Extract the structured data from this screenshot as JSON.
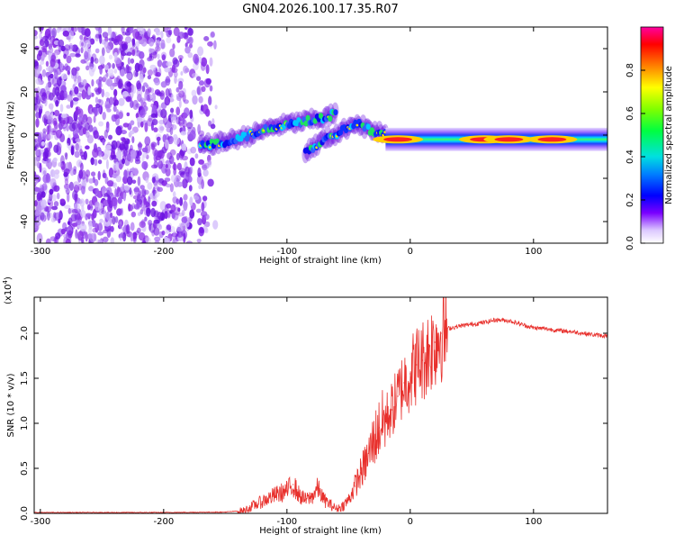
{
  "title": "GN04.2026.100.17.35.R07",
  "chart_data": [
    {
      "type": "heatmap",
      "xlabel": "Height of straight line (km)",
      "ylabel": "Frequency (Hz)",
      "xlim": [
        -305,
        160
      ],
      "ylim": [
        -50,
        50
      ],
      "xticks": [
        -300,
        -200,
        -100,
        0,
        100
      ],
      "xtick_labels": [
        "-300",
        "-200",
        "-100",
        "0",
        "100"
      ],
      "yticks": [
        -40,
        -20,
        0,
        20,
        40
      ],
      "ytick_labels": [
        "-40",
        "-20",
        "0",
        "20",
        "40"
      ],
      "colorbar": {
        "label": "Normalized spectral amplitude",
        "range": [
          0,
          1
        ],
        "ticks": [
          0.0,
          0.2,
          0.4,
          0.6,
          0.8
        ],
        "tick_labels": [
          "0.0",
          "0.2",
          "0.4",
          "0.6",
          "0.8"
        ]
      },
      "features": [
        {
          "name": "noise",
          "x_range": [
            -305,
            -155
          ],
          "y_range": [
            -50,
            50
          ],
          "amplitude": 0.15
        },
        {
          "name": "trace-1",
          "points": [
            [
              -170,
              -5
            ],
            [
              -150,
              -3
            ],
            [
              -130,
              0
            ],
            [
              -110,
              4
            ],
            [
              -90,
              6
            ],
            [
              -70,
              8
            ],
            [
              -60,
              10
            ]
          ],
          "amplitude": 0.4
        },
        {
          "name": "trace-2",
          "points": [
            [
              -85,
              -8
            ],
            [
              -70,
              -2
            ],
            [
              -55,
              2
            ],
            [
              -45,
              6
            ],
            [
              -35,
              3
            ],
            [
              -20,
              0
            ]
          ],
          "amplitude": 0.45
        },
        {
          "name": "carrier",
          "x_range": [
            -20,
            160
          ],
          "frequency": -2,
          "peaks": [
            [
              -10,
              0.9
            ],
            [
              60,
              0.85
            ],
            [
              80,
              0.85
            ],
            [
              115,
              0.95
            ]
          ]
        }
      ]
    },
    {
      "type": "line",
      "xlabel": "Height of straight line (km)",
      "ylabel": "SNR (10 * v/v)",
      "yexponent": "(x10",
      "yexponent_sup": "4",
      "yexponent_close": ")",
      "xlim": [
        -305,
        160
      ],
      "ylim": [
        0,
        2.4
      ],
      "xticks": [
        -300,
        -200,
        -100,
        0,
        100
      ],
      "xtick_labels": [
        "-300",
        "-200",
        "-100",
        "0",
        "100"
      ],
      "yticks": [
        0.0,
        0.5,
        1.0,
        1.5,
        2.0
      ],
      "ytick_labels": [
        "0.0",
        "0.5",
        "1.0",
        "1.5",
        "2.0"
      ],
      "series": [
        {
          "name": "SNR",
          "color": "#e8302c",
          "x": [
            -305,
            -250,
            -200,
            -150,
            -135,
            -125,
            -110,
            -100,
            -95,
            -90,
            -85,
            -80,
            -75,
            -70,
            -60,
            -55,
            -50,
            -45,
            -40,
            -35,
            -30,
            -25,
            -20,
            -15,
            -10,
            -5,
            0,
            5,
            10,
            15,
            20,
            25,
            30,
            40,
            50,
            60,
            70,
            80,
            85,
            90,
            95,
            100,
            110,
            120,
            130,
            140,
            150,
            160
          ],
          "values": [
            0.01,
            0.01,
            0.01,
            0.015,
            0.03,
            0.1,
            0.2,
            0.25,
            0.32,
            0.2,
            0.15,
            0.18,
            0.28,
            0.15,
            0.05,
            0.08,
            0.15,
            0.3,
            0.45,
            0.6,
            0.8,
            0.95,
            1.05,
            1.15,
            1.3,
            1.45,
            1.55,
            1.65,
            1.7,
            1.8,
            1.9,
            2.0,
            2.05,
            2.08,
            2.1,
            2.12,
            2.15,
            2.14,
            2.12,
            2.1,
            2.08,
            2.06,
            2.05,
            2.03,
            2.02,
            2.0,
            1.98,
            1.97
          ]
        }
      ]
    }
  ]
}
